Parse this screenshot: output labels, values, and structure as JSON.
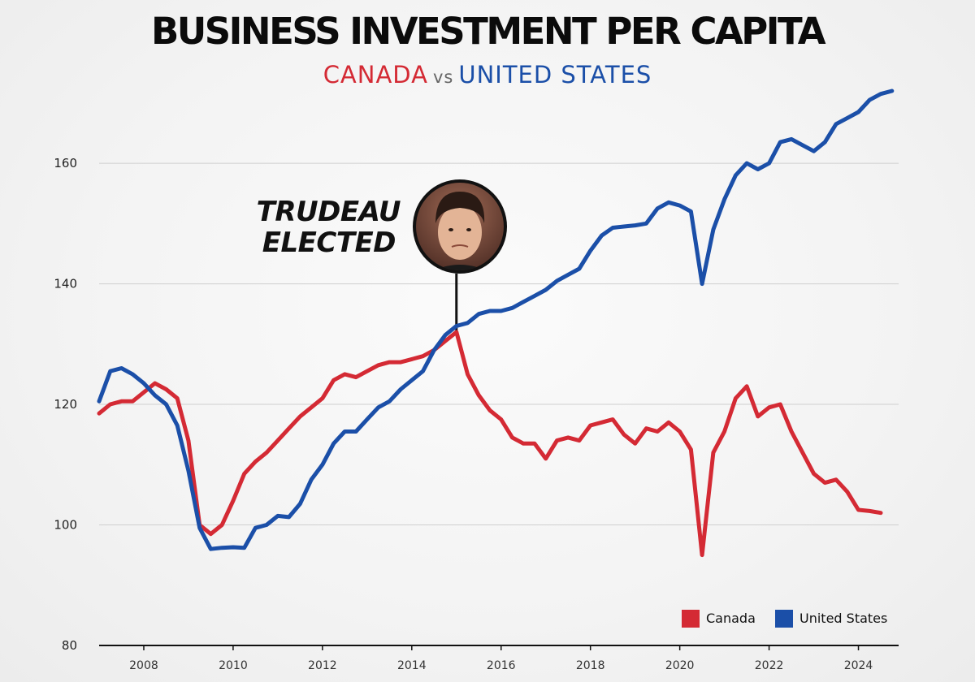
{
  "chart_data": {
    "type": "line",
    "title": "BUSINESS INVESTMENT PER CAPITA",
    "subtitle": {
      "left": "CANADA",
      "middle": "vs",
      "right": "UNITED STATES"
    },
    "xlabel": "",
    "ylabel": "",
    "xlim": [
      2007,
      2024.9
    ],
    "ylim": [
      80,
      172
    ],
    "yticks": [
      80,
      100,
      120,
      140,
      160
    ],
    "xticks": [
      2008,
      2010,
      2012,
      2014,
      2016,
      2018,
      2020,
      2022,
      2024
    ],
    "grid": true,
    "legend": "bottom-right",
    "annotation": {
      "line1": "TRUDEAU",
      "line2": "ELECTED",
      "x": 2015.0
    },
    "series": [
      {
        "name": "Canada",
        "color": "#d42a34",
        "x": [
          2007.0,
          2007.25,
          2007.5,
          2007.75,
          2008.0,
          2008.25,
          2008.5,
          2008.75,
          2009.0,
          2009.25,
          2009.5,
          2009.75,
          2010.0,
          2010.25,
          2010.5,
          2010.75,
          2011.0,
          2011.25,
          2011.5,
          2011.75,
          2012.0,
          2012.25,
          2012.5,
          2012.75,
          2013.0,
          2013.25,
          2013.5,
          2013.75,
          2014.0,
          2014.25,
          2014.5,
          2014.75,
          2015.0,
          2015.25,
          2015.5,
          2015.75,
          2016.0,
          2016.25,
          2016.5,
          2016.75,
          2017.0,
          2017.25,
          2017.5,
          2017.75,
          2018.0,
          2018.25,
          2018.5,
          2018.75,
          2019.0,
          2019.25,
          2019.5,
          2019.75,
          2020.0,
          2020.25,
          2020.5,
          2020.75,
          2021.0,
          2021.25,
          2021.5,
          2021.75,
          2022.0,
          2022.25,
          2022.5,
          2022.75,
          2023.0,
          2023.25,
          2023.5,
          2023.75,
          2024.0,
          2024.25,
          2024.5
        ],
        "values": [
          118.5,
          120.0,
          120.5,
          120.5,
          122.0,
          123.5,
          122.5,
          121.0,
          114.0,
          100.0,
          98.5,
          100.0,
          104.0,
          108.5,
          110.5,
          112.0,
          114.0,
          116.0,
          118.0,
          119.5,
          121.0,
          124.0,
          125.0,
          124.5,
          125.5,
          126.5,
          127.0,
          127.0,
          127.5,
          128.0,
          129.0,
          130.5,
          132.0,
          125.0,
          121.5,
          119.0,
          117.5,
          114.5,
          113.5,
          113.5,
          111.0,
          114.0,
          114.5,
          114.0,
          116.5,
          117.0,
          117.5,
          115.0,
          113.5,
          116.0,
          115.5,
          117.0,
          115.5,
          112.5,
          95.0,
          112.0,
          115.5,
          121.0,
          123.0,
          118.0,
          119.5,
          120.0,
          115.5,
          112.0,
          108.5,
          107.0,
          107.5,
          105.5,
          102.5,
          102.3,
          102.0
        ]
      },
      {
        "name": "United States",
        "color": "#1b4fa8",
        "x": [
          2007.0,
          2007.25,
          2007.5,
          2007.75,
          2008.0,
          2008.25,
          2008.5,
          2008.75,
          2009.0,
          2009.25,
          2009.5,
          2009.75,
          2010.0,
          2010.25,
          2010.5,
          2010.75,
          2011.0,
          2011.25,
          2011.5,
          2011.75,
          2012.0,
          2012.25,
          2012.5,
          2012.75,
          2013.0,
          2013.25,
          2013.5,
          2013.75,
          2014.0,
          2014.25,
          2014.5,
          2014.75,
          2015.0,
          2015.25,
          2015.5,
          2015.75,
          2016.0,
          2016.25,
          2016.5,
          2016.75,
          2017.0,
          2017.25,
          2017.5,
          2017.75,
          2018.0,
          2018.25,
          2018.5,
          2018.75,
          2019.0,
          2019.25,
          2019.5,
          2019.75,
          2020.0,
          2020.25,
          2020.5,
          2020.75,
          2021.0,
          2021.25,
          2021.5,
          2021.75,
          2022.0,
          2022.25,
          2022.5,
          2022.75,
          2023.0,
          2023.25,
          2023.5,
          2023.75,
          2024.0,
          2024.25,
          2024.5,
          2024.75
        ],
        "values": [
          120.5,
          125.5,
          126.0,
          125.0,
          123.5,
          121.5,
          120.0,
          116.5,
          109.0,
          99.5,
          96.0,
          96.2,
          96.3,
          96.2,
          99.5,
          100.0,
          101.5,
          101.3,
          103.5,
          107.5,
          110.0,
          113.5,
          115.5,
          115.5,
          117.5,
          119.5,
          120.5,
          122.5,
          124.0,
          125.5,
          129.0,
          131.5,
          133.0,
          133.5,
          135.0,
          135.5,
          135.5,
          136.0,
          137.0,
          138.0,
          139.0,
          140.5,
          141.5,
          142.5,
          145.5,
          148.0,
          149.3,
          149.5,
          149.7,
          150.0,
          152.5,
          153.5,
          153.0,
          152.0,
          140.0,
          149.0,
          154.0,
          158.0,
          160.0,
          159.0,
          160.0,
          163.5,
          164.0,
          163.0,
          162.0,
          163.5,
          166.5,
          167.5,
          168.5,
          170.5,
          171.5,
          172.0
        ]
      }
    ]
  },
  "legend": {
    "canada": "Canada",
    "us": "United States"
  },
  "annotation_image": "justin-trudeau-portrait"
}
